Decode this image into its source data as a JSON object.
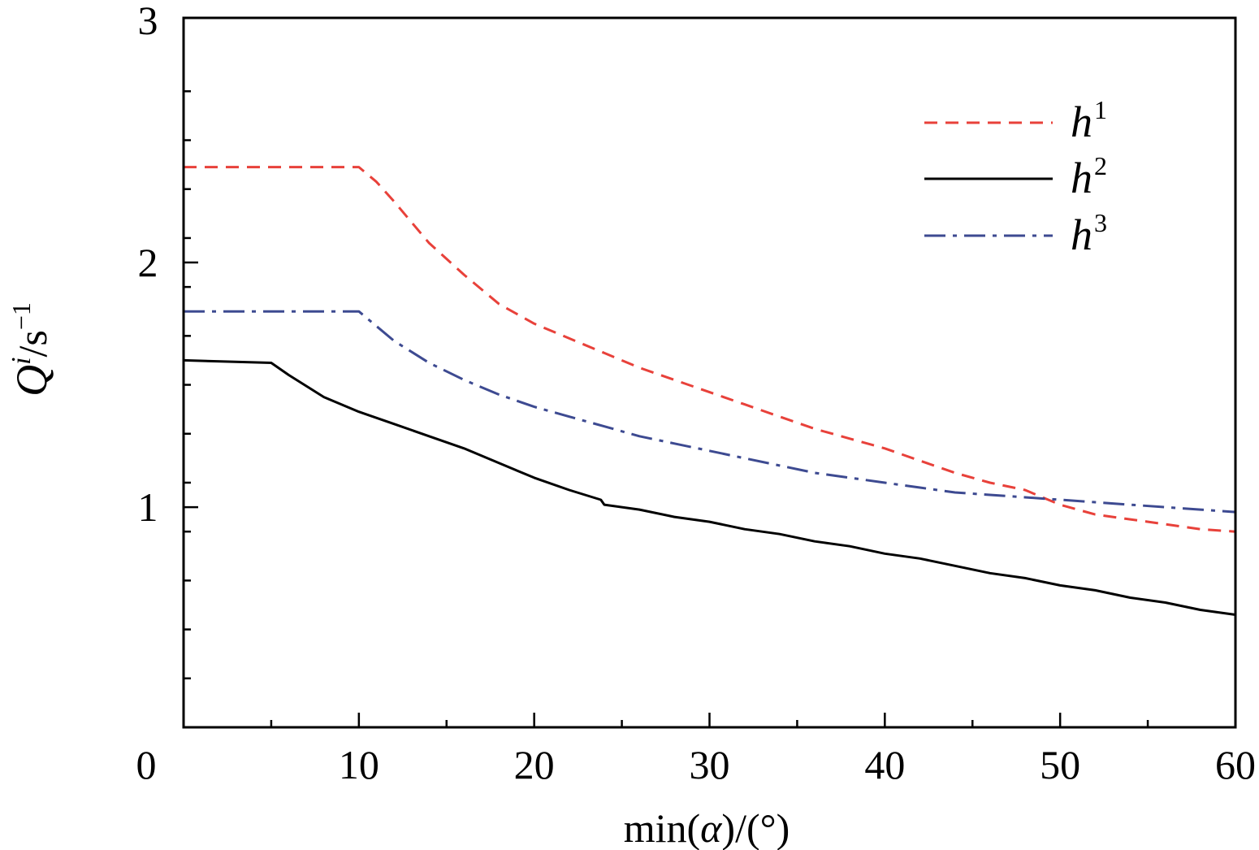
{
  "chart_data": {
    "type": "line",
    "title": "",
    "xlabel": {
      "prefix": "min(",
      "var": "α",
      "suffix": ")/(°)"
    },
    "ylabel": {
      "var": "Q",
      "sup": "i",
      "unit": "/s",
      "unit_sup": "−1"
    },
    "xlim": [
      0,
      60
    ],
    "ylim": [
      0.1,
      3
    ],
    "x_ticks": [
      0,
      10,
      20,
      30,
      40,
      50,
      60
    ],
    "x_tick_labels": [
      "0",
      "10",
      "20",
      "30",
      "40",
      "50",
      "60"
    ],
    "y_ticks": [
      1,
      2,
      3
    ],
    "y_tick_labels": [
      "1",
      "2",
      "3"
    ],
    "x_minor_step": 5,
    "y_minor_step": 0.2,
    "grid": false,
    "legend_position": "top-right",
    "series": [
      {
        "name": "h",
        "sup": "1",
        "color": "#e8413a",
        "dash": "dashed",
        "x": [
          0,
          10,
          11,
          12,
          14,
          16,
          18,
          20,
          22,
          24,
          26,
          28,
          30,
          32,
          34,
          36,
          38,
          40,
          42,
          44,
          46,
          48,
          50,
          52,
          54,
          56,
          58,
          60
        ],
        "y": [
          2.39,
          2.39,
          2.33,
          2.25,
          2.08,
          1.95,
          1.83,
          1.75,
          1.69,
          1.63,
          1.57,
          1.52,
          1.47,
          1.42,
          1.37,
          1.32,
          1.28,
          1.24,
          1.19,
          1.14,
          1.1,
          1.07,
          1.01,
          0.97,
          0.95,
          0.93,
          0.91,
          0.9
        ]
      },
      {
        "name": "h",
        "sup": "2",
        "color": "#000000",
        "dash": "solid",
        "x": [
          0,
          5,
          6,
          8,
          10,
          12,
          14,
          16,
          18,
          20,
          22,
          23.8,
          24,
          26,
          28,
          30,
          32,
          34,
          36,
          38,
          40,
          42,
          44,
          46,
          48,
          50,
          52,
          54,
          56,
          58,
          60
        ],
        "y": [
          1.6,
          1.59,
          1.54,
          1.45,
          1.39,
          1.34,
          1.29,
          1.24,
          1.18,
          1.12,
          1.07,
          1.03,
          1.01,
          0.99,
          0.96,
          0.94,
          0.91,
          0.89,
          0.86,
          0.84,
          0.81,
          0.79,
          0.76,
          0.73,
          0.71,
          0.68,
          0.66,
          0.63,
          0.61,
          0.58,
          0.56
        ]
      },
      {
        "name": "h",
        "sup": "3",
        "color": "#3d4a91",
        "dash": "dashdot",
        "x": [
          0,
          10,
          11,
          12,
          14,
          16,
          18,
          20,
          22,
          24,
          26,
          28,
          30,
          32,
          34,
          36,
          38,
          40,
          42,
          44,
          46,
          48,
          50,
          52,
          54,
          56,
          58,
          60
        ],
        "y": [
          1.8,
          1.8,
          1.74,
          1.68,
          1.59,
          1.52,
          1.46,
          1.41,
          1.37,
          1.33,
          1.29,
          1.26,
          1.23,
          1.2,
          1.17,
          1.14,
          1.12,
          1.1,
          1.08,
          1.06,
          1.05,
          1.04,
          1.03,
          1.02,
          1.01,
          1.0,
          0.99,
          0.98
        ]
      }
    ]
  }
}
